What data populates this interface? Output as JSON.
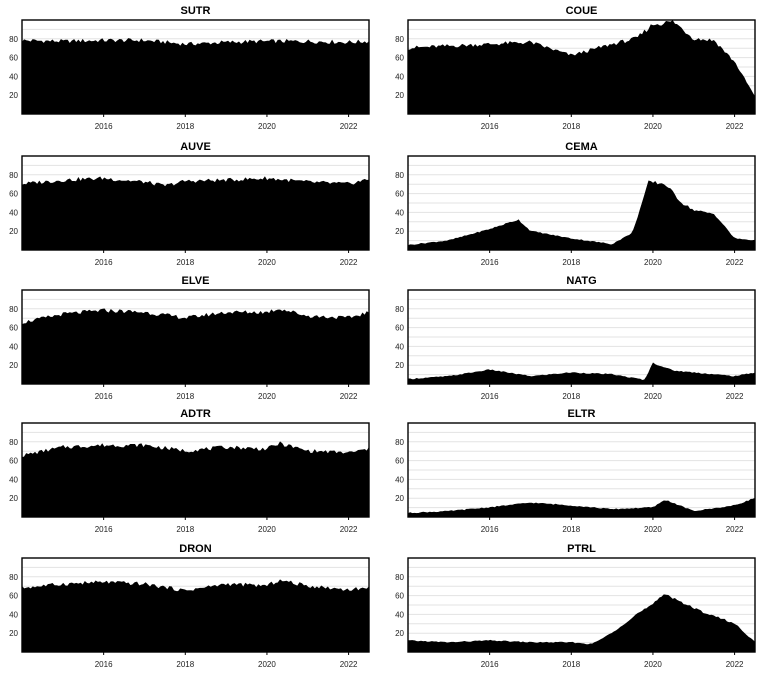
{
  "chart_data": [
    {
      "type": "area",
      "title": "SUTR",
      "x": [
        2014,
        2015,
        2016,
        2017,
        2018,
        2019,
        2020,
        2021,
        2022,
        2022.5
      ],
      "values": [
        78,
        77,
        78,
        78,
        74,
        76,
        77,
        77,
        76,
        77
      ],
      "ylim": [
        0,
        100
      ],
      "yticks": [
        20,
        40,
        60,
        80
      ],
      "xticks": [
        2016,
        2018,
        2020,
        2022
      ],
      "xlim": [
        2014,
        2022.5
      ],
      "grid": true
    },
    {
      "type": "area",
      "title": "COUE",
      "x": [
        2014,
        2015,
        2016,
        2017,
        2018,
        2019,
        2019.6,
        2020,
        2020.5,
        2021,
        2021.5,
        2022,
        2022.5
      ],
      "values": [
        70,
        72,
        74,
        76,
        62,
        74,
        80,
        95,
        98,
        80,
        78,
        55,
        18
      ],
      "ylim": [
        0,
        100
      ],
      "yticks": [
        20,
        40,
        60,
        80
      ],
      "xticks": [
        2016,
        2018,
        2020,
        2022
      ],
      "xlim": [
        2014,
        2022.5
      ],
      "grid": true
    },
    {
      "type": "area",
      "title": "AUVE",
      "x": [
        2014,
        2015,
        2016,
        2017,
        2017.5,
        2018,
        2019,
        2020,
        2020.5,
        2021,
        2022,
        2022.5
      ],
      "values": [
        70,
        74,
        76,
        72,
        68,
        73,
        74,
        76,
        74,
        72,
        70,
        75
      ],
      "ylim": [
        0,
        100
      ],
      "yticks": [
        20,
        40,
        60,
        80
      ],
      "xticks": [
        2016,
        2018,
        2020,
        2022
      ],
      "xlim": [
        2014,
        2022.5
      ],
      "grid": true
    },
    {
      "type": "area",
      "title": "CEMA",
      "x": [
        2014,
        2015,
        2016,
        2016.7,
        2017,
        2018,
        2019,
        2019.5,
        2019.9,
        2020.3,
        2020.7,
        2021,
        2021.5,
        2022,
        2022.5
      ],
      "values": [
        5,
        10,
        22,
        32,
        20,
        12,
        6,
        18,
        72,
        70,
        50,
        42,
        38,
        12,
        10
      ],
      "ylim": [
        0,
        100
      ],
      "yticks": [
        20,
        40,
        60,
        80
      ],
      "xticks": [
        2016,
        2018,
        2020,
        2022
      ],
      "xlim": [
        2014,
        2022.5
      ],
      "grid": true
    },
    {
      "type": "area",
      "title": "ELVE",
      "x": [
        2014,
        2015,
        2016,
        2017,
        2018,
        2019,
        2020,
        2020.3,
        2021,
        2022,
        2022.5
      ],
      "values": [
        65,
        74,
        78,
        76,
        70,
        76,
        76,
        80,
        72,
        70,
        76
      ],
      "ylim": [
        0,
        100
      ],
      "yticks": [
        20,
        40,
        60,
        80
      ],
      "xticks": [
        2016,
        2018,
        2020,
        2022
      ],
      "xlim": [
        2014,
        2022.5
      ],
      "grid": true
    },
    {
      "type": "area",
      "title": "NATG",
      "x": [
        2014,
        2015,
        2016,
        2017,
        2018,
        2019,
        2019.8,
        2020,
        2020.5,
        2021,
        2022,
        2022.5
      ],
      "values": [
        5,
        8,
        15,
        8,
        12,
        10,
        4,
        22,
        14,
        12,
        8,
        12
      ],
      "ylim": [
        0,
        100
      ],
      "yticks": [
        20,
        40,
        60,
        80
      ],
      "xticks": [
        2016,
        2018,
        2020,
        2022
      ],
      "xlim": [
        2014,
        2022.5
      ],
      "grid": true
    },
    {
      "type": "area",
      "title": "ADTR",
      "x": [
        2014,
        2015,
        2016,
        2017,
        2018,
        2019,
        2020,
        2020.3,
        2021,
        2022,
        2022.5
      ],
      "values": [
        65,
        74,
        76,
        76,
        70,
        74,
        72,
        78,
        70,
        68,
        72
      ],
      "ylim": [
        0,
        100
      ],
      "yticks": [
        20,
        40,
        60,
        80
      ],
      "xticks": [
        2016,
        2018,
        2020,
        2022
      ],
      "xlim": [
        2014,
        2022.5
      ],
      "grid": true
    },
    {
      "type": "area",
      "title": "ELTR",
      "x": [
        2014,
        2015,
        2016,
        2017,
        2018,
        2019,
        2020,
        2020.3,
        2021,
        2022,
        2022.5
      ],
      "values": [
        4,
        6,
        10,
        15,
        12,
        8,
        10,
        18,
        6,
        12,
        20
      ],
      "ylim": [
        0,
        100
      ],
      "yticks": [
        20,
        40,
        60,
        80
      ],
      "xticks": [
        2016,
        2018,
        2020,
        2022
      ],
      "xlim": [
        2014,
        2022.5
      ],
      "grid": true
    },
    {
      "type": "area",
      "title": "DRON",
      "x": [
        2014,
        2015,
        2016,
        2017,
        2018,
        2019,
        2020,
        2020.3,
        2021,
        2022,
        2022.5
      ],
      "values": [
        68,
        72,
        74,
        72,
        65,
        72,
        70,
        76,
        70,
        66,
        68
      ],
      "ylim": [
        0,
        100
      ],
      "yticks": [
        20,
        40,
        60,
        80
      ],
      "xticks": [
        2016,
        2018,
        2020,
        2022
      ],
      "xlim": [
        2014,
        2022.5
      ],
      "grid": true
    },
    {
      "type": "area",
      "title": "PTRL",
      "x": [
        2014,
        2015,
        2016,
        2017,
        2018,
        2018.5,
        2019,
        2019.6,
        2020,
        2020.3,
        2021,
        2022,
        2022.5
      ],
      "values": [
        12,
        10,
        12,
        10,
        10,
        8,
        20,
        40,
        50,
        62,
        46,
        30,
        10
      ],
      "ylim": [
        0,
        100
      ],
      "yticks": [
        20,
        40,
        60,
        80
      ],
      "xticks": [
        2016,
        2018,
        2020,
        2022
      ],
      "xlim": [
        2014,
        2022.5
      ],
      "grid": true
    }
  ]
}
